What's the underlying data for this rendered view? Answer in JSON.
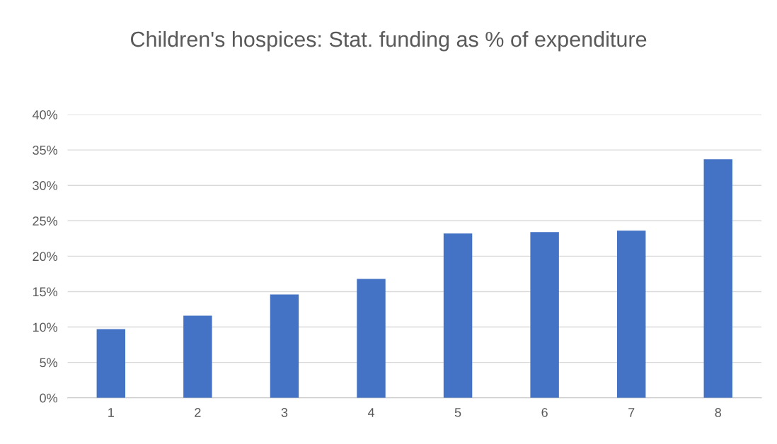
{
  "chart_data": {
    "type": "bar",
    "title": "Children's hospices: Stat. funding as % of expenditure",
    "categories": [
      "1",
      "2",
      "3",
      "4",
      "5",
      "6",
      "7",
      "8"
    ],
    "values": [
      9.7,
      11.6,
      14.6,
      16.8,
      23.2,
      23.4,
      23.6,
      33.7
    ],
    "color": "#4472c4",
    "ylim": [
      0,
      40
    ],
    "yticks": [
      {
        "value": 0,
        "label": "0%"
      },
      {
        "value": 5,
        "label": "5%"
      },
      {
        "value": 10,
        "label": "10%"
      },
      {
        "value": 15,
        "label": "15%"
      },
      {
        "value": 20,
        "label": "20%"
      },
      {
        "value": 25,
        "label": "25%"
      },
      {
        "value": 30,
        "label": "30%"
      },
      {
        "value": 35,
        "label": "35%"
      },
      {
        "value": 40,
        "label": "40%"
      }
    ],
    "grid": "y"
  }
}
